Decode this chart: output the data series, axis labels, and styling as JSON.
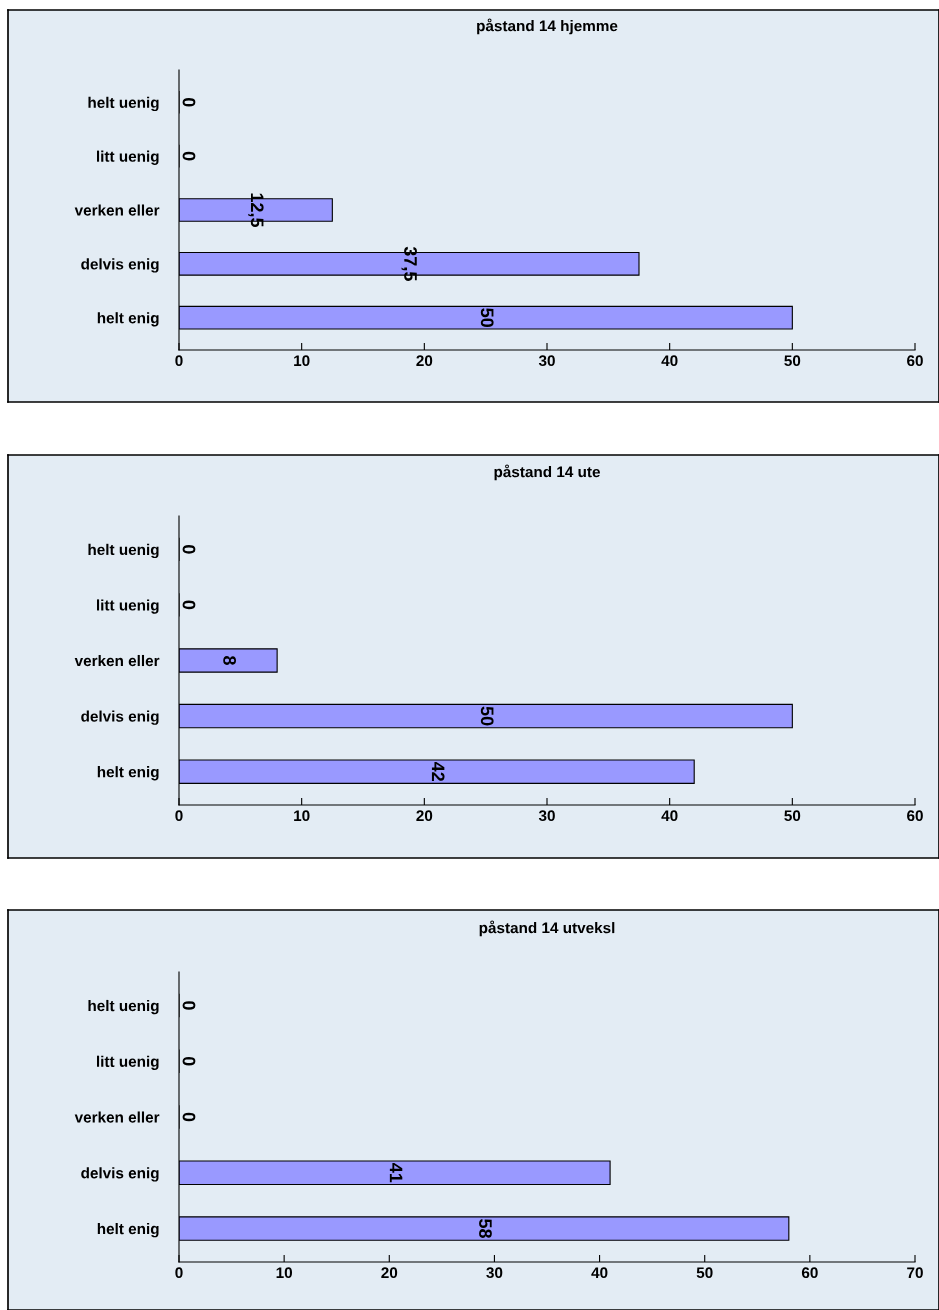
{
  "chart_data": [
    {
      "type": "bar",
      "orientation": "horizontal",
      "title": "påstand 14 hjemme",
      "categories": [
        "helt uenig",
        "litt uenig",
        "verken eller",
        "delvis enig",
        "helt enig"
      ],
      "values": [
        0,
        0,
        12.5,
        37.5,
        50
      ],
      "value_labels": [
        "0",
        "0",
        "12,5",
        "37,5",
        "50"
      ],
      "color": "#9999ff",
      "xlim": [
        0,
        60
      ],
      "xticks": [
        0,
        10,
        20,
        30,
        40,
        50,
        60
      ],
      "grid": false,
      "legend": false
    },
    {
      "type": "bar",
      "orientation": "horizontal",
      "title": "påstand 14 ute",
      "categories": [
        "helt uenig",
        "litt uenig",
        "verken eller",
        "delvis enig",
        "helt enig"
      ],
      "values": [
        0,
        0,
        8,
        50,
        42
      ],
      "value_labels": [
        "0",
        "0",
        "8",
        "50",
        "42"
      ],
      "color": "#9999ff",
      "xlim": [
        0,
        60
      ],
      "xticks": [
        0,
        10,
        20,
        30,
        40,
        50,
        60
      ],
      "grid": false,
      "legend": false
    },
    {
      "type": "bar",
      "orientation": "horizontal",
      "title": "påstand 14 utveksl",
      "categories": [
        "helt uenig",
        "litt uenig",
        "verken eller",
        "delvis enig",
        "helt enig"
      ],
      "values": [
        0,
        0,
        0,
        41,
        58
      ],
      "value_labels": [
        "0",
        "0",
        "0",
        "41",
        "58"
      ],
      "color": "#9999ff",
      "xlim": [
        0,
        70
      ],
      "xticks": [
        0,
        10,
        20,
        30,
        40,
        50,
        60,
        70
      ],
      "grid": false,
      "legend": false
    }
  ]
}
